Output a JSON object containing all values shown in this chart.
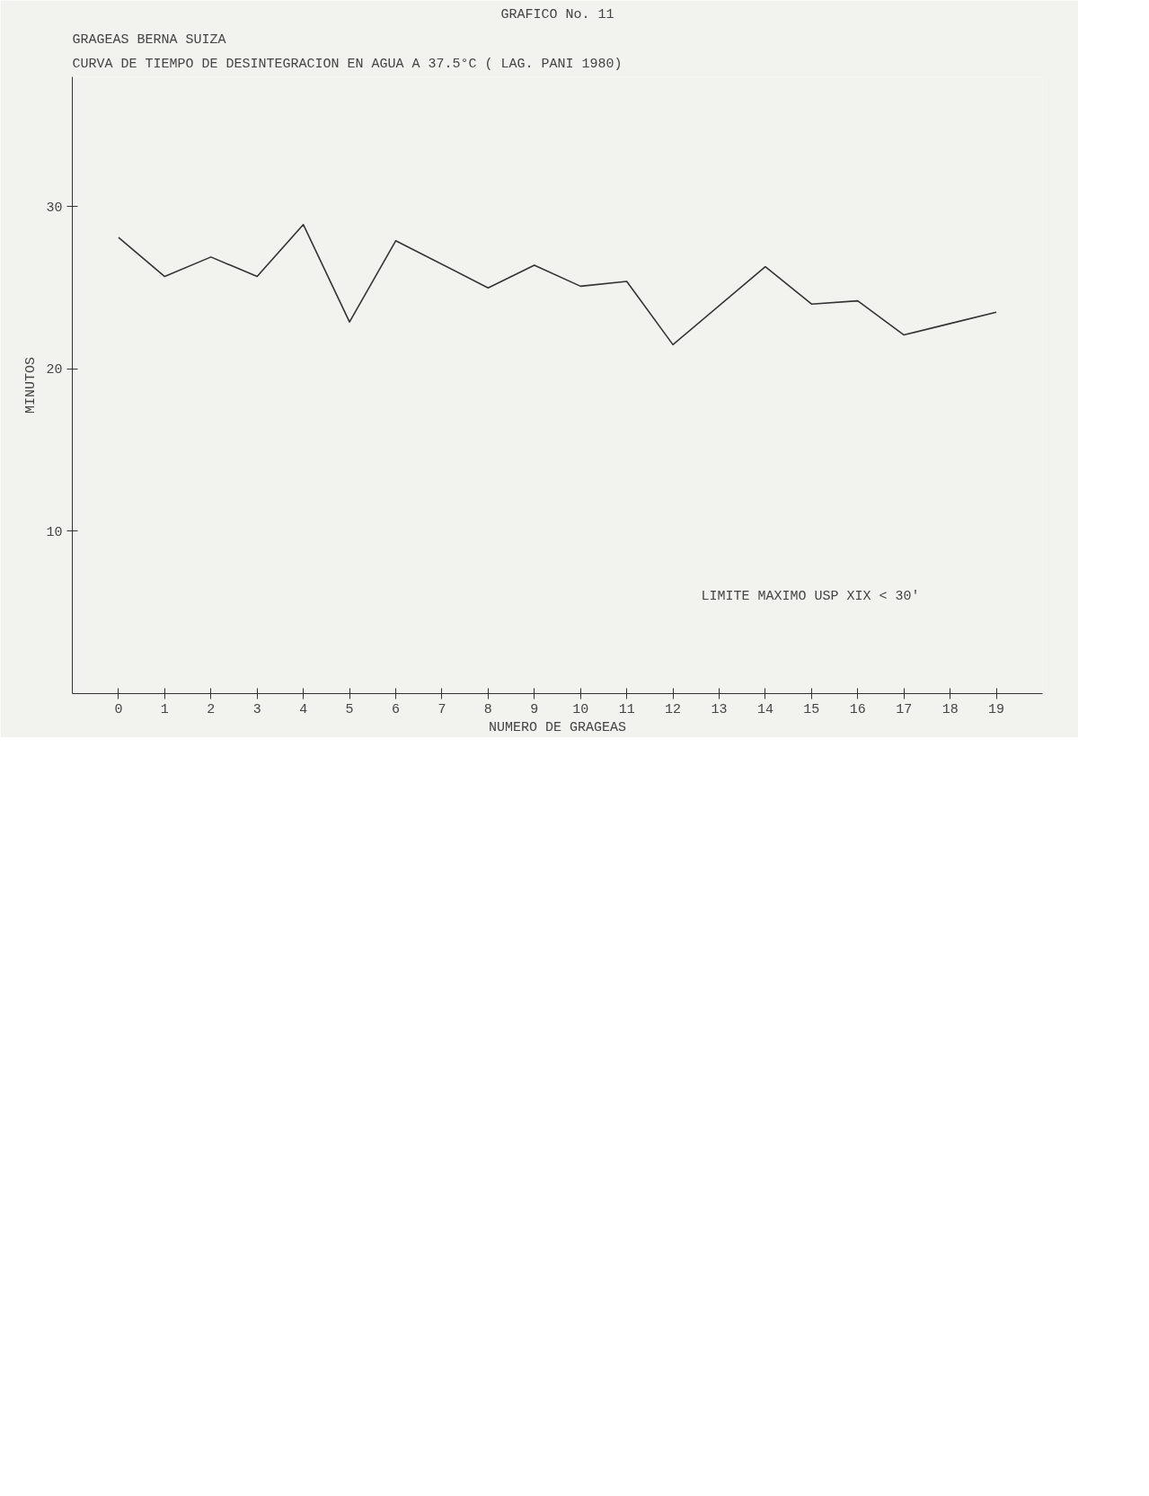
{
  "chart_data": {
    "type": "line",
    "title": "GRAFICO No. 11",
    "subtitle": "GRAGEAS BERNA SUIZA\nCURVA DE TIEMPO DE DESINTEGRACION EN AGUA A 37.5°C ( LAG. PANI 1980)",
    "xlabel": "NUMERO DE GRAGEAS",
    "ylabel": "MINUTOS",
    "x": [
      0,
      1,
      2,
      3,
      4,
      5,
      6,
      8,
      9,
      10,
      11,
      12,
      14,
      15,
      16,
      17,
      18,
      19
    ],
    "series": [
      {
        "color": "#333333",
        "values": [
          28.1,
          25.7,
          26.9,
          25.7,
          28.9,
          22.9,
          27.9,
          25.0,
          26.4,
          25.1,
          25.4,
          21.5,
          26.3,
          24.0,
          24.2,
          22.1,
          22.8,
          23.5
        ]
      }
    ],
    "xlim": [
      -1,
      20
    ],
    "xticks": [
      0,
      1,
      2,
      3,
      4,
      5,
      6,
      7,
      8,
      9,
      10,
      11,
      12,
      13,
      14,
      15,
      16,
      17,
      18,
      19
    ],
    "ylim": [
      0,
      38
    ],
    "yticks": [
      10,
      20,
      30
    ],
    "marker": "none",
    "line_style": "solid",
    "annotations": [
      "LIMITE MAXIMO USP XIX < 30'"
    ]
  }
}
